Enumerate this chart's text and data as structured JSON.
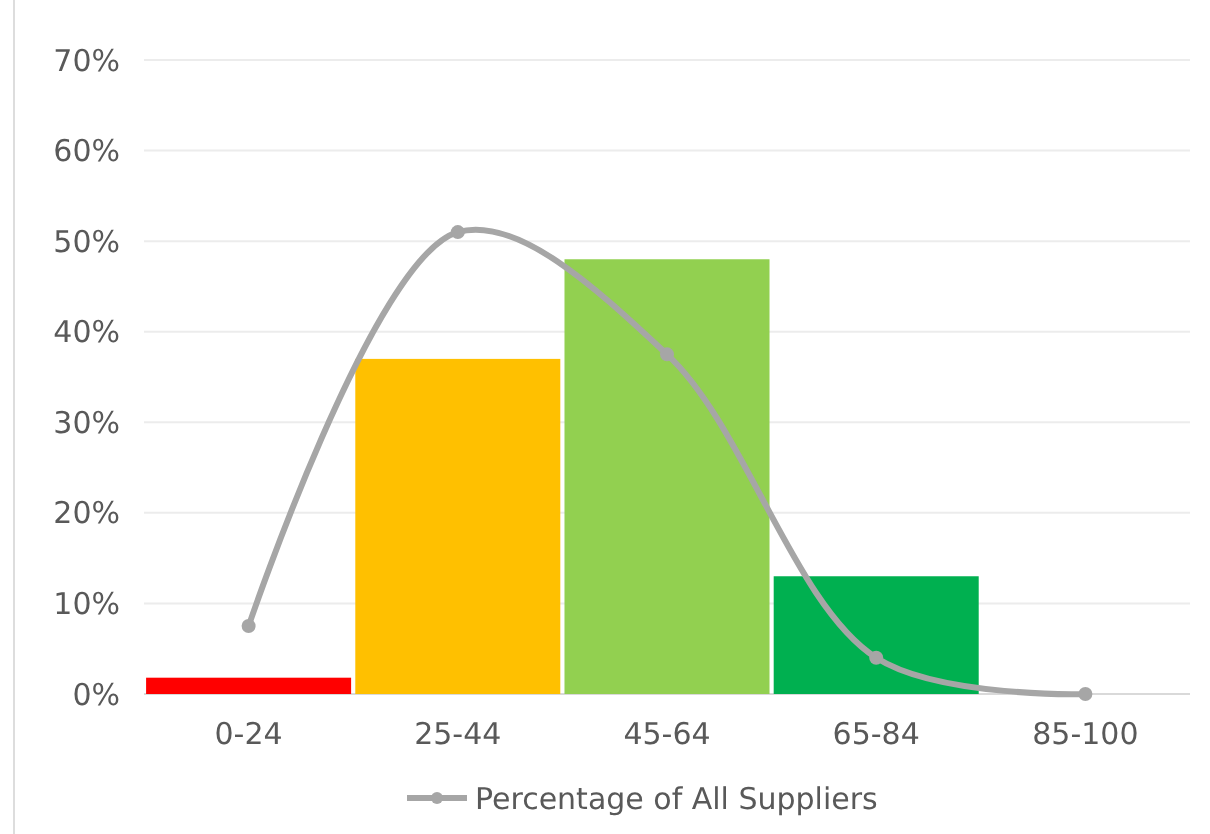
{
  "chart_data": {
    "type": "bar",
    "categories": [
      "0-24",
      "25-44",
      "45-64",
      "65-84",
      "85-100"
    ],
    "series": [
      {
        "colors": [
          "#ff0000",
          "#ffc000",
          "#92d050",
          "#00b050",
          null
        ],
        "values": [
          1.8,
          37,
          48,
          13,
          null
        ]
      },
      {
        "type": "line",
        "name": "Percentage of All Suppliers",
        "color": "#a6a6a6",
        "values": [
          7.5,
          51,
          37.5,
          4,
          0
        ],
        "marker": "circle"
      }
    ],
    "ylim": [
      0,
      70
    ],
    "yticks": [
      {
        "value": 0,
        "label": "0%"
      },
      {
        "value": 10,
        "label": "10%"
      },
      {
        "value": 20,
        "label": "20%"
      },
      {
        "value": 30,
        "label": "30%"
      },
      {
        "value": 40,
        "label": "40%"
      },
      {
        "value": 50,
        "label": "50%"
      },
      {
        "value": 60,
        "label": "60%"
      },
      {
        "value": 70,
        "label": "70%"
      }
    ],
    "grid": "y",
    "legend": "bottom"
  }
}
